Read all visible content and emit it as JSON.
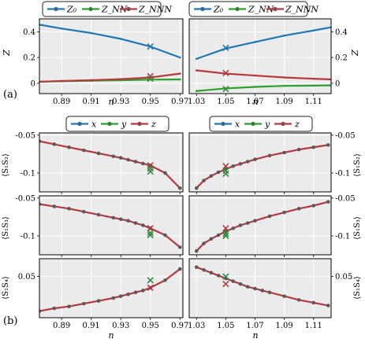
{
  "colors": {
    "blue": "#1f77b4",
    "green": "#2ca02c",
    "red": "#b5393f",
    "cross_green": "#2e8b3a",
    "cross_red": "#b5393f",
    "axes_bg": "#ebebeb",
    "grid": "#ffffff",
    "marker_face": "#5a5a5a"
  },
  "labels": {
    "panel_a": "(a)",
    "panel_b": "(b)",
    "xlabel": "n",
    "ylabel_Z": "Z",
    "ylabel_S12": "⟨S₁S₂⟩",
    "ylabel_S13": "⟨S₁S₃⟩",
    "ylabel_S14": "⟨S₁S₄⟩"
  },
  "legend_top": [
    {
      "name": "Z₀",
      "color_key": "blue"
    },
    {
      "name": "Z_NN",
      "color_key": "green"
    },
    {
      "name": "Z_NNN",
      "color_key": "red"
    }
  ],
  "legend_bottom": [
    {
      "name": "x",
      "color_key": "blue"
    },
    {
      "name": "y",
      "color_key": "green"
    },
    {
      "name": "z",
      "color_key": "red"
    }
  ],
  "chart_data": [
    {
      "type": "line",
      "id": "Z_left",
      "xlabel": "n",
      "ylabel": "Z",
      "xlim": [
        0.875,
        0.972
      ],
      "ylim": [
        -0.08,
        0.5
      ],
      "xticks": [
        0.89,
        0.91,
        0.93,
        0.95,
        0.97
      ],
      "yticks": [
        0.0,
        0.2,
        0.4
      ],
      "series": [
        {
          "name": "Z₀",
          "color_key": "blue",
          "x": [
            0.875,
            0.89,
            0.91,
            0.93,
            0.95,
            0.97
          ],
          "y": [
            0.455,
            0.425,
            0.39,
            0.345,
            0.285,
            0.2
          ]
        },
        {
          "name": "Z_NN",
          "color_key": "green",
          "x": [
            0.875,
            0.89,
            0.91,
            0.93,
            0.95,
            0.97
          ],
          "y": [
            0.012,
            0.016,
            0.02,
            0.024,
            0.028,
            0.03
          ]
        },
        {
          "name": "Z_NNN",
          "color_key": "red",
          "x": [
            0.875,
            0.89,
            0.91,
            0.93,
            0.95,
            0.97
          ],
          "y": [
            0.012,
            0.018,
            0.024,
            0.032,
            0.045,
            0.075
          ]
        }
      ],
      "crosses": [
        {
          "x": 0.95,
          "y": 0.285,
          "color_key": "blue"
        },
        {
          "x": 0.95,
          "y": 0.035,
          "color_key": "green"
        },
        {
          "x": 0.95,
          "y": 0.055,
          "color_key": "red"
        }
      ]
    },
    {
      "type": "line",
      "id": "Z_right",
      "xlabel": "n",
      "ylabel": "Z",
      "xlim": [
        1.025,
        1.122
      ],
      "ylim": [
        -0.08,
        0.5
      ],
      "xticks": [
        1.03,
        1.05,
        1.07,
        1.09,
        1.11
      ],
      "yticks": [
        0.0,
        0.2,
        0.4
      ],
      "series": [
        {
          "name": "Z₀",
          "color_key": "blue",
          "x": [
            1.03,
            1.05,
            1.07,
            1.09,
            1.11,
            1.122
          ],
          "y": [
            0.19,
            0.27,
            0.32,
            0.37,
            0.41,
            0.435
          ]
        },
        {
          "name": "Z_NN",
          "color_key": "green",
          "x": [
            1.03,
            1.05,
            1.07,
            1.09,
            1.11,
            1.122
          ],
          "y": [
            -0.06,
            -0.04,
            -0.028,
            -0.02,
            -0.018,
            -0.016
          ]
        },
        {
          "name": "Z_NNN",
          "color_key": "red",
          "x": [
            1.03,
            1.05,
            1.07,
            1.09,
            1.11,
            1.122
          ],
          "y": [
            0.1,
            0.075,
            0.06,
            0.045,
            0.035,
            0.03
          ]
        }
      ],
      "crosses": [
        {
          "x": 1.05,
          "y": 0.275,
          "color_key": "blue"
        },
        {
          "x": 1.05,
          "y": -0.045,
          "color_key": "green"
        },
        {
          "x": 1.05,
          "y": 0.08,
          "color_key": "red"
        }
      ]
    },
    {
      "type": "line",
      "id": "S12_left",
      "ylabel": "⟨S₁S₂⟩",
      "xlim": [
        0.875,
        0.972
      ],
      "ylim": [
        -0.125,
        -0.047
      ],
      "xticks": [
        0.89,
        0.91,
        0.93,
        0.95,
        0.97
      ],
      "yticks": [
        -0.05,
        -0.1
      ],
      "series": [
        {
          "name": "z",
          "color_key": "red",
          "x": [
            0.875,
            0.885,
            0.895,
            0.905,
            0.915,
            0.925,
            0.93,
            0.935,
            0.94,
            0.945,
            0.95,
            0.96,
            0.97
          ],
          "y": [
            -0.058,
            -0.062,
            -0.066,
            -0.07,
            -0.074,
            -0.078,
            -0.08,
            -0.0825,
            -0.085,
            -0.0875,
            -0.09,
            -0.1,
            -0.12
          ]
        }
      ],
      "crosses": [
        {
          "x": 0.95,
          "y": -0.09,
          "color_key": "red"
        },
        {
          "x": 0.95,
          "y": -0.094,
          "color_key": "green"
        },
        {
          "x": 0.95,
          "y": -0.098,
          "color_key": "green"
        }
      ]
    },
    {
      "type": "line",
      "id": "S12_right",
      "ylabel": "⟨S₁S₂⟩",
      "xlim": [
        1.025,
        1.122
      ],
      "ylim": [
        -0.125,
        -0.047
      ],
      "xticks": [
        1.03,
        1.05,
        1.07,
        1.09,
        1.11
      ],
      "yticks": [
        -0.05,
        -0.1
      ],
      "series": [
        {
          "name": "z",
          "color_key": "red",
          "x": [
            1.03,
            1.035,
            1.04,
            1.045,
            1.05,
            1.055,
            1.06,
            1.065,
            1.07,
            1.08,
            1.09,
            1.1,
            1.11,
            1.12
          ],
          "y": [
            -0.12,
            -0.11,
            -0.104,
            -0.099,
            -0.095,
            -0.091,
            -0.088,
            -0.085,
            -0.082,
            -0.077,
            -0.073,
            -0.069,
            -0.066,
            -0.063
          ]
        }
      ],
      "crosses": [
        {
          "x": 1.05,
          "y": -0.091,
          "color_key": "red"
        },
        {
          "x": 1.05,
          "y": -0.097,
          "color_key": "green"
        },
        {
          "x": 1.05,
          "y": -0.101,
          "color_key": "green"
        }
      ]
    },
    {
      "type": "line",
      "id": "S13_left",
      "ylabel": "⟨S₁S₃⟩",
      "xlim": [
        0.875,
        0.972
      ],
      "ylim": [
        -0.125,
        -0.047
      ],
      "xticks": [
        0.89,
        0.91,
        0.93,
        0.95,
        0.97
      ],
      "yticks": [
        -0.05,
        -0.1
      ],
      "series": [
        {
          "name": "z",
          "color_key": "red",
          "x": [
            0.875,
            0.885,
            0.895,
            0.905,
            0.915,
            0.925,
            0.93,
            0.935,
            0.94,
            0.945,
            0.95,
            0.96,
            0.97
          ],
          "y": [
            -0.058,
            -0.061,
            -0.064,
            -0.068,
            -0.072,
            -0.076,
            -0.078,
            -0.08,
            -0.083,
            -0.086,
            -0.09,
            -0.099,
            -0.115
          ]
        }
      ],
      "crosses": [
        {
          "x": 0.95,
          "y": -0.09,
          "color_key": "red"
        },
        {
          "x": 0.95,
          "y": -0.096,
          "color_key": "green"
        },
        {
          "x": 0.95,
          "y": -0.099,
          "color_key": "green"
        }
      ]
    },
    {
      "type": "line",
      "id": "S13_right",
      "ylabel": "⟨S₁S₃⟩",
      "xlim": [
        1.025,
        1.122
      ],
      "ylim": [
        -0.125,
        -0.047
      ],
      "xticks": [
        1.03,
        1.05,
        1.07,
        1.09,
        1.11
      ],
      "yticks": [
        -0.05,
        -0.1
      ],
      "series": [
        {
          "name": "z",
          "color_key": "red",
          "x": [
            1.03,
            1.035,
            1.04,
            1.045,
            1.05,
            1.055,
            1.06,
            1.065,
            1.07,
            1.08,
            1.09,
            1.1,
            1.11,
            1.12
          ],
          "y": [
            -0.12,
            -0.11,
            -0.104,
            -0.099,
            -0.094,
            -0.09,
            -0.086,
            -0.083,
            -0.08,
            -0.074,
            -0.069,
            -0.064,
            -0.06,
            -0.055
          ]
        }
      ],
      "crosses": [
        {
          "x": 1.05,
          "y": -0.09,
          "color_key": "red"
        },
        {
          "x": 1.05,
          "y": -0.097,
          "color_key": "green"
        },
        {
          "x": 1.05,
          "y": -0.1,
          "color_key": "green"
        }
      ]
    },
    {
      "type": "line",
      "id": "S14_left",
      "ylabel": "⟨S₁S₄⟩",
      "xlim": [
        0.875,
        0.972
      ],
      "ylim": [
        0.006,
        0.069
      ],
      "xticks": [
        0.89,
        0.91,
        0.93,
        0.95,
        0.97
      ],
      "yticks": [
        0.05
      ],
      "series": [
        {
          "name": "z",
          "color_key": "red",
          "x": [
            0.875,
            0.885,
            0.895,
            0.905,
            0.915,
            0.925,
            0.93,
            0.935,
            0.94,
            0.945,
            0.95,
            0.96,
            0.97
          ],
          "y": [
            0.013,
            0.016,
            0.018,
            0.021,
            0.024,
            0.027,
            0.029,
            0.031,
            0.033,
            0.035,
            0.038,
            0.046,
            0.058
          ]
        }
      ],
      "crosses": [
        {
          "x": 0.95,
          "y": 0.046,
          "color_key": "green"
        },
        {
          "x": 0.95,
          "y": 0.038,
          "color_key": "red"
        }
      ]
    },
    {
      "type": "line",
      "id": "S14_right",
      "ylabel": "⟨S₁S₄⟩",
      "xlim": [
        1.025,
        1.122
      ],
      "ylim": [
        0.006,
        0.069
      ],
      "xticks": [
        1.03,
        1.05,
        1.07,
        1.09,
        1.11
      ],
      "yticks": [
        0.05
      ],
      "series": [
        {
          "name": "z",
          "color_key": "red",
          "x": [
            1.03,
            1.035,
            1.04,
            1.045,
            1.05,
            1.055,
            1.06,
            1.065,
            1.07,
            1.075,
            1.08,
            1.09,
            1.1,
            1.11,
            1.12
          ],
          "y": [
            0.06,
            0.057,
            0.054,
            0.051,
            0.048,
            0.045,
            0.042,
            0.039,
            0.037,
            0.035,
            0.033,
            0.029,
            0.025,
            0.022,
            0.019
          ]
        }
      ],
      "crosses": [
        {
          "x": 1.05,
          "y": 0.05,
          "color_key": "green"
        },
        {
          "x": 1.05,
          "y": 0.042,
          "color_key": "red"
        }
      ]
    }
  ]
}
